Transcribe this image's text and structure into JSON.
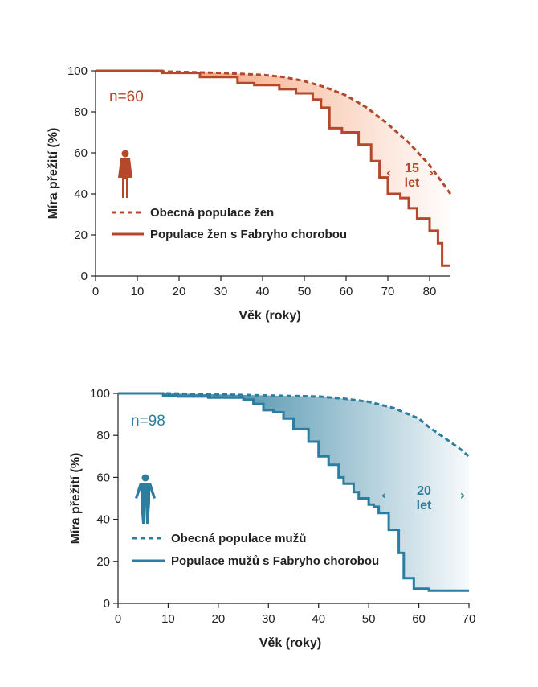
{
  "chart_data": [
    {
      "type": "line",
      "color": "#b5472a",
      "fill_color": "#f28e5c",
      "xlabel": "Věk (roky)",
      "ylabel": "Míra přežití (%)",
      "xlim": [
        0,
        85
      ],
      "ylim": [
        0,
        100
      ],
      "x_ticks": [
        "0",
        "10",
        "20",
        "30",
        "40",
        "50",
        "60",
        "70",
        "80"
      ],
      "y_ticks": [
        "0",
        "20",
        "40",
        "60",
        "80",
        "100"
      ],
      "n_label": "n=60",
      "icon": "woman-figure-icon",
      "annotation": {
        "line1": "15",
        "line2": "let"
      },
      "legend": [
        "Obecná populace žen",
        "Populace žen s Fabryho chorobou"
      ],
      "grid": false,
      "series": [
        {
          "name": "Obecná populace žen",
          "style": "dashed",
          "x": [
            0,
            10,
            20,
            30,
            40,
            45,
            50,
            55,
            60,
            65,
            70,
            75,
            80,
            85
          ],
          "y": [
            100,
            100,
            99.5,
            99,
            98,
            97,
            95,
            92,
            88,
            82,
            74,
            65,
            54,
            40
          ]
        },
        {
          "name": "Populace žen s Fabryho chorobou",
          "style": "solid",
          "x": [
            0,
            16,
            16,
            25,
            25,
            34,
            34,
            38,
            38,
            44,
            44,
            48,
            48,
            52,
            52,
            54,
            54,
            56,
            56,
            59,
            59,
            63,
            63,
            66,
            66,
            68,
            68,
            70,
            70,
            73,
            73,
            75,
            75,
            77,
            77,
            80,
            80,
            82,
            82,
            83,
            83,
            85
          ],
          "y": [
            100,
            100,
            99,
            99,
            97,
            97,
            94,
            94,
            93,
            93,
            91,
            91,
            89,
            89,
            86,
            86,
            82,
            82,
            72,
            72,
            70,
            70,
            64,
            64,
            56,
            56,
            48,
            48,
            40,
            40,
            38,
            38,
            33,
            33,
            28,
            28,
            22,
            22,
            16,
            16,
            5,
            5
          ]
        }
      ]
    },
    {
      "type": "line",
      "color": "#2b7ea0",
      "fill_color": "#4c99b6",
      "xlabel": "Věk (roky)",
      "ylabel": "Míra přežití (%)",
      "xlim": [
        0,
        70
      ],
      "ylim": [
        0,
        100
      ],
      "x_ticks": [
        "0",
        "10",
        "20",
        "30",
        "40",
        "50",
        "60",
        "70"
      ],
      "y_ticks": [
        "0",
        "20",
        "40",
        "60",
        "80",
        "100"
      ],
      "n_label": "n=98",
      "icon": "man-figure-icon",
      "annotation": {
        "line1": "20",
        "line2": "let"
      },
      "legend": [
        "Obecná populace mužů",
        "Populace mužů s Fabryho chorobou"
      ],
      "grid": false,
      "series": [
        {
          "name": "Obecná populace mužů",
          "style": "dashed",
          "x": [
            0,
            10,
            20,
            30,
            40,
            45,
            50,
            55,
            58,
            60,
            62,
            65,
            68,
            70
          ],
          "y": [
            100,
            100,
            99.5,
            99,
            98.5,
            97.5,
            96,
            93,
            90,
            88,
            84,
            79,
            74,
            70
          ]
        },
        {
          "name": "Populace mužů s Fabryho chorobou",
          "style": "solid",
          "x": [
            0,
            9,
            9,
            12,
            12,
            18,
            18,
            25,
            25,
            27,
            27,
            29,
            29,
            31,
            31,
            33,
            33,
            35,
            35,
            38,
            38,
            40,
            40,
            42,
            42,
            44,
            44,
            45,
            45,
            47,
            47,
            48,
            48,
            50,
            50,
            51,
            51,
            52,
            52,
            54,
            54,
            56,
            56,
            57,
            57,
            59,
            59,
            62,
            62,
            70
          ],
          "y": [
            100,
            100,
            99,
            99,
            98.5,
            98.5,
            98,
            98,
            97,
            97,
            95,
            95,
            92,
            92,
            91,
            91,
            88,
            88,
            83,
            83,
            77,
            77,
            70,
            70,
            66,
            66,
            60,
            60,
            57,
            57,
            53,
            53,
            50,
            50,
            47,
            47,
            46,
            46,
            43,
            43,
            35,
            35,
            24,
            24,
            12,
            12,
            7,
            7,
            6,
            6
          ]
        }
      ]
    }
  ]
}
